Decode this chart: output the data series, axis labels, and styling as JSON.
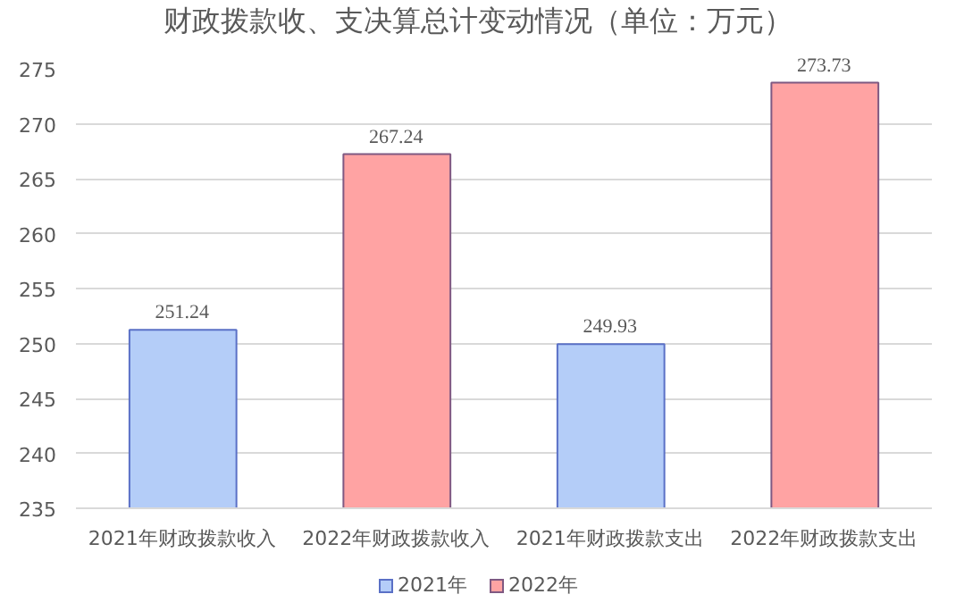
{
  "chart_data": {
    "type": "bar",
    "title": "财政拨款收、支决算总计变动情况（单位：万元）",
    "categories": [
      "2021年财政拨款收入",
      "2022年财政拨款收入",
      "2021年财政拨款支出",
      "2022年财政拨款支出"
    ],
    "series": [
      {
        "name": "2021年",
        "color": "#b4cdf8",
        "values": [
          251.24,
          null,
          249.93,
          null
        ]
      },
      {
        "name": "2022年",
        "color": "#ffa3a3",
        "values": [
          null,
          267.24,
          null,
          273.73
        ]
      }
    ],
    "ylim": [
      235,
      275
    ],
    "yticks": [
      235,
      240,
      245,
      250,
      255,
      260,
      265,
      270,
      275
    ],
    "grid": "y",
    "legend": "bottom",
    "data_labels": true
  }
}
